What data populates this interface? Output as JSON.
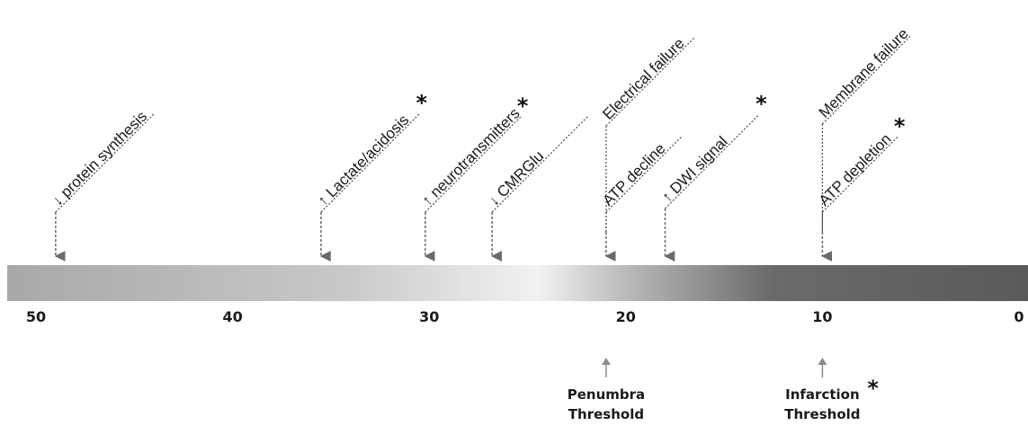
{
  "scale": {
    "ticks": [
      {
        "value": 50,
        "label": "50"
      },
      {
        "value": 40,
        "label": "40"
      },
      {
        "value": 30,
        "label": "30"
      },
      {
        "value": 20,
        "label": "20"
      },
      {
        "value": 10,
        "label": "10"
      },
      {
        "value": 0,
        "label": "0"
      }
    ]
  },
  "gradient_colors": [
    "#a8a8a8",
    "#c8c8c8",
    "#f2f2f2",
    "#bdbdbd",
    "#6a6a6a",
    "#5a5a5a"
  ],
  "events": [
    {
      "name": "protein-synthesis",
      "direction": "↓",
      "text": "protein synthesis",
      "value": 49,
      "asterisk": false
    },
    {
      "name": "lactate-acidosis",
      "direction": "↑",
      "text": "Lactate/acidosis",
      "value": 35.5,
      "asterisk": true
    },
    {
      "name": "neurotransmitters",
      "direction": "↑",
      "text": "neurotransmitters",
      "value": 30.2,
      "asterisk": true
    },
    {
      "name": "cmrglu",
      "direction": "↓",
      "text": "CMRGlu",
      "value": 26.8,
      "asterisk": false
    },
    {
      "name": "electrical-failure",
      "direction": "",
      "text": "Electrical failure",
      "value": 21,
      "asterisk": false,
      "group": "penumbra"
    },
    {
      "name": "atp-decline",
      "direction": "",
      "text": "ATP  decline",
      "value": 21,
      "asterisk": false,
      "group": "penumbra"
    },
    {
      "name": "dwi-signal",
      "direction": "↑",
      "text": "DWI signal",
      "value": 18,
      "asterisk": true
    },
    {
      "name": "membrane-failure",
      "direction": "",
      "text": "Membrane failure",
      "value": 10,
      "asterisk": false,
      "group": "infarction"
    },
    {
      "name": "atp-depletion",
      "direction": "",
      "text": "ATP  depletion",
      "value": 10,
      "asterisk": true,
      "group": "infarction"
    }
  ],
  "thresholds": [
    {
      "name": "penumbra",
      "line1": "Penumbra",
      "line2": "Threshold",
      "value": 21,
      "asterisk": false
    },
    {
      "name": "infarction",
      "line1": "Infarction",
      "line2": "Threshold",
      "value": 10,
      "asterisk": true
    }
  ],
  "asterisk_symbol": "*"
}
